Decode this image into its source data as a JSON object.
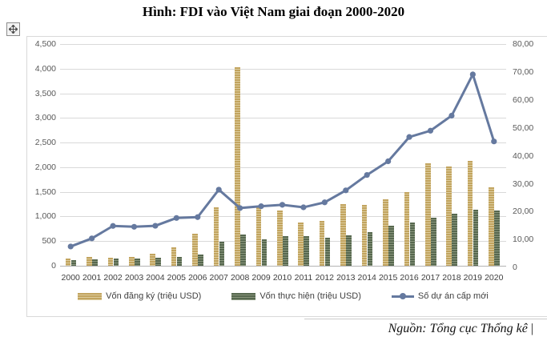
{
  "title": "Hình: FDI vào Việt Nam giai đoạn 2000-2020",
  "source": "Nguồn: Tổng cục Thống kê",
  "source_cursor": "|",
  "move_handle": {
    "icon": "move-icon"
  },
  "chart_data": {
    "type": "bar",
    "subtype": "combo-bar-line",
    "title": "Hình: FDI vào Việt Nam giai đoạn 2000-2020",
    "categories": [
      "2000",
      "2001",
      "2002",
      "2003",
      "2004",
      "2005",
      "2006",
      "2007",
      "2008",
      "2009",
      "2010",
      "2011",
      "2012",
      "2013",
      "2014",
      "2015",
      "2016",
      "2017",
      "2018",
      "2019",
      "2020"
    ],
    "series": [
      {
        "name": "Vốn đăng ký (triệu USD)",
        "type": "bar",
        "color": "#c2a45f",
        "values": [
          145,
          175,
          155,
          175,
          250,
          370,
          645,
          1180,
          4030,
          1180,
          1115,
          870,
          915,
          1250,
          1230,
          1350,
          1490,
          2080,
          2015,
          2135,
          1595
        ]
      },
      {
        "name": "Vốn thực hiện (triệu USD)",
        "type": "bar",
        "color": "#57684f",
        "values": [
          120,
          132,
          150,
          140,
          158,
          185,
          228,
          490,
          635,
          535,
          598,
          597,
          565,
          625,
          682,
          810,
          873,
          968,
          1063,
          1140,
          1118
        ]
      },
      {
        "name": "Số dự án cấp mới",
        "type": "line",
        "color": "#65799f",
        "plotted_on": "left",
        "values": [
          391,
          555,
          808,
          791,
          811,
          970,
          987,
          1544,
          1171,
          1208,
          1237,
          1186,
          1287,
          1530,
          1843,
          2120,
          2613,
          2741,
          3046,
          3883,
          2523
        ]
      }
    ],
    "left_axis": {
      "min": 0,
      "max": 4500,
      "step": 500,
      "labels": [
        "0",
        "500",
        "1,000",
        "1,500",
        "2,000",
        "2,500",
        "3,000",
        "3,500",
        "4,000",
        "4,500"
      ]
    },
    "right_axis": {
      "labels_top_to_bottom": [
        "80,00",
        "70,00",
        "60,00",
        "50,00",
        "40,00",
        "30,00",
        "20,00",
        "10,00",
        "0"
      ]
    },
    "grid": true,
    "legend_position": "bottom"
  }
}
